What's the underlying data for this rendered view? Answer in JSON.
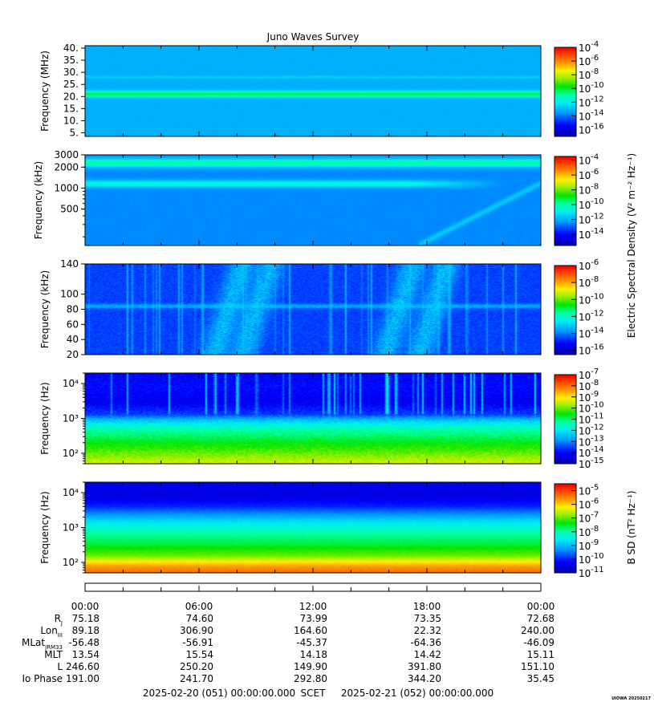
{
  "title": "Juno Waves Survey",
  "footer": {
    "start": "2025-02-20 (051) 00:00:00.000",
    "scet": "SCET",
    "end": "2025-02-21 (052) 00:00:00.000",
    "credit": "UIOWA 20250217"
  },
  "shared_colorbar_label": "Electric Spectral Density (V² m⁻² Hz⁻¹)",
  "ephemeris": {
    "times": [
      "00:00",
      "06:00",
      "12:00",
      "18:00",
      "00:00"
    ],
    "rows": [
      {
        "label": "R",
        "sub": "J",
        "values": [
          "75.18",
          "74.60",
          "73.99",
          "73.35",
          "72.68"
        ]
      },
      {
        "label": "Lon",
        "sub": "III",
        "values": [
          "89.18",
          "306.90",
          "164.60",
          "22.32",
          "240.00"
        ]
      },
      {
        "label": "MLat",
        "sub": "JRM33",
        "values": [
          "-56.48",
          "-56.91",
          "-45.37",
          "-64.36",
          "-46.09"
        ]
      },
      {
        "label": "MLT",
        "sub": "",
        "values": [
          "13.54",
          "15.54",
          "14.18",
          "14.42",
          "15.11"
        ]
      },
      {
        "label": "L",
        "sub": "",
        "values": [
          "246.60",
          "250.20",
          "149.90",
          "391.80",
          "151.10"
        ]
      },
      {
        "label": "Io Phase",
        "sub": "",
        "values": [
          "191.00",
          "241.70",
          "292.80",
          "344.20",
          "35.45"
        ]
      }
    ]
  },
  "chart_data": [
    {
      "type": "heatmap",
      "title": "Juno Waves Survey",
      "xlabel": "",
      "ylabel": "Frequency (MHz)",
      "y_scale": "linear",
      "ylim": [
        3.5,
        41
      ],
      "y_ticks": [
        5,
        10,
        15,
        20,
        25,
        30,
        35,
        40
      ],
      "y_tick_labels": [
        "5.",
        "10.",
        "15.",
        "20.",
        "25.",
        "30.",
        "35.",
        "40."
      ],
      "colorbar": {
        "log_range": [
          -17,
          -4
        ],
        "labels": [
          "-4",
          "-6",
          "-8",
          "-10",
          "-12",
          "-14",
          "-16"
        ],
        "label": ""
      },
      "base_level": -13.2,
      "features": [
        {
          "kind": "band",
          "y": 21,
          "width": 1.2,
          "level": -10.2
        },
        {
          "kind": "band",
          "y": 28,
          "width": 0.6,
          "level": -12.6
        }
      ]
    },
    {
      "type": "heatmap",
      "xlabel": "",
      "ylabel": "Frequency (kHz)",
      "y_scale": "log",
      "ylim": [
        150,
        3000
      ],
      "y_ticks": [
        500,
        1000,
        2000,
        3000
      ],
      "y_tick_labels": [
        "500",
        "1000",
        "2000",
        "3000"
      ],
      "colorbar": {
        "log_range": [
          -15.5,
          -3.5
        ],
        "labels": [
          "-4",
          "-6",
          "-8",
          "-10",
          "-12",
          "-14"
        ],
        "label": "Electric Spectral Density (V² m⁻² Hz⁻¹)"
      },
      "base_level": -12.5,
      "features": [
        {
          "kind": "band",
          "y": 2300,
          "width": 0.06,
          "level": -10.0
        },
        {
          "kind": "band",
          "y": 1150,
          "width": 0.05,
          "level": -10.6,
          "fade_after_hour": 17
        },
        {
          "kind": "drift",
          "start_hour": 17.5,
          "level": -11.5
        }
      ]
    },
    {
      "type": "heatmap",
      "xlabel": "",
      "ylabel": "Frequency (kHz)",
      "y_scale": "linear",
      "ylim": [
        20,
        140
      ],
      "y_ticks": [
        20,
        40,
        60,
        80,
        100,
        140
      ],
      "y_tick_labels": [
        "20",
        "40",
        "60",
        "80",
        "100",
        "140"
      ],
      "colorbar": {
        "log_range": [
          -16.5,
          -6
        ],
        "labels": [
          "-6",
          "-8",
          "-10",
          "-12",
          "-14",
          "-16"
        ],
        "label": ""
      },
      "base_level": -14.6,
      "features": [
        {
          "kind": "band",
          "y": 84,
          "width": 3,
          "level": -13.5
        },
        {
          "kind": "bursts",
          "centers_hour": [
            7.5,
            9.0,
            16.5,
            18.3
          ],
          "level": -12.8
        },
        {
          "kind": "spikes",
          "level": -13.0
        }
      ]
    },
    {
      "type": "heatmap",
      "xlabel": "",
      "ylabel": "Frequency (Hz)",
      "y_scale": "log",
      "ylim": [
        50,
        20000
      ],
      "y_ticks": [
        100,
        1000,
        10000
      ],
      "y_tick_labels": [
        "10²",
        "10³",
        "10⁴"
      ],
      "colorbar": {
        "log_range": [
          -15,
          -7
        ],
        "labels": [
          "-7",
          "-8",
          "-9",
          "-10",
          "-11",
          "-12",
          "-13",
          "-14",
          "-15"
        ],
        "label": ""
      },
      "profile": [
        [
          50,
          -9.4
        ],
        [
          100,
          -10.0
        ],
        [
          200,
          -10.6
        ],
        [
          500,
          -11.4
        ],
        [
          900,
          -12.5
        ],
        [
          1300,
          -13.6
        ],
        [
          3000,
          -14.2
        ],
        [
          8000,
          -14.0
        ],
        [
          20000,
          -14.1
        ]
      ],
      "features": [
        {
          "kind": "spikes",
          "level": -12.0
        }
      ]
    },
    {
      "type": "heatmap",
      "xlabel": "",
      "ylabel": "Frequency (Hz)",
      "y_scale": "log",
      "ylim": [
        50,
        20000
      ],
      "y_ticks": [
        100,
        1000,
        10000
      ],
      "y_tick_labels": [
        "10²",
        "10³",
        "10⁴"
      ],
      "colorbar": {
        "log_range": [
          -11,
          -4.5
        ],
        "labels": [
          "-5",
          "-6",
          "-7",
          "-8",
          "-9",
          "-10",
          "-11"
        ],
        "label": "B SD (nT² Hz⁻¹)"
      },
      "profile": [
        [
          50,
          -5.3
        ],
        [
          80,
          -5.7
        ],
        [
          150,
          -6.9
        ],
        [
          300,
          -7.5
        ],
        [
          700,
          -8.0
        ],
        [
          1500,
          -8.7
        ],
        [
          4000,
          -10.0
        ],
        [
          8000,
          -10.5
        ],
        [
          20000,
          -10.4
        ]
      ],
      "features": []
    }
  ]
}
